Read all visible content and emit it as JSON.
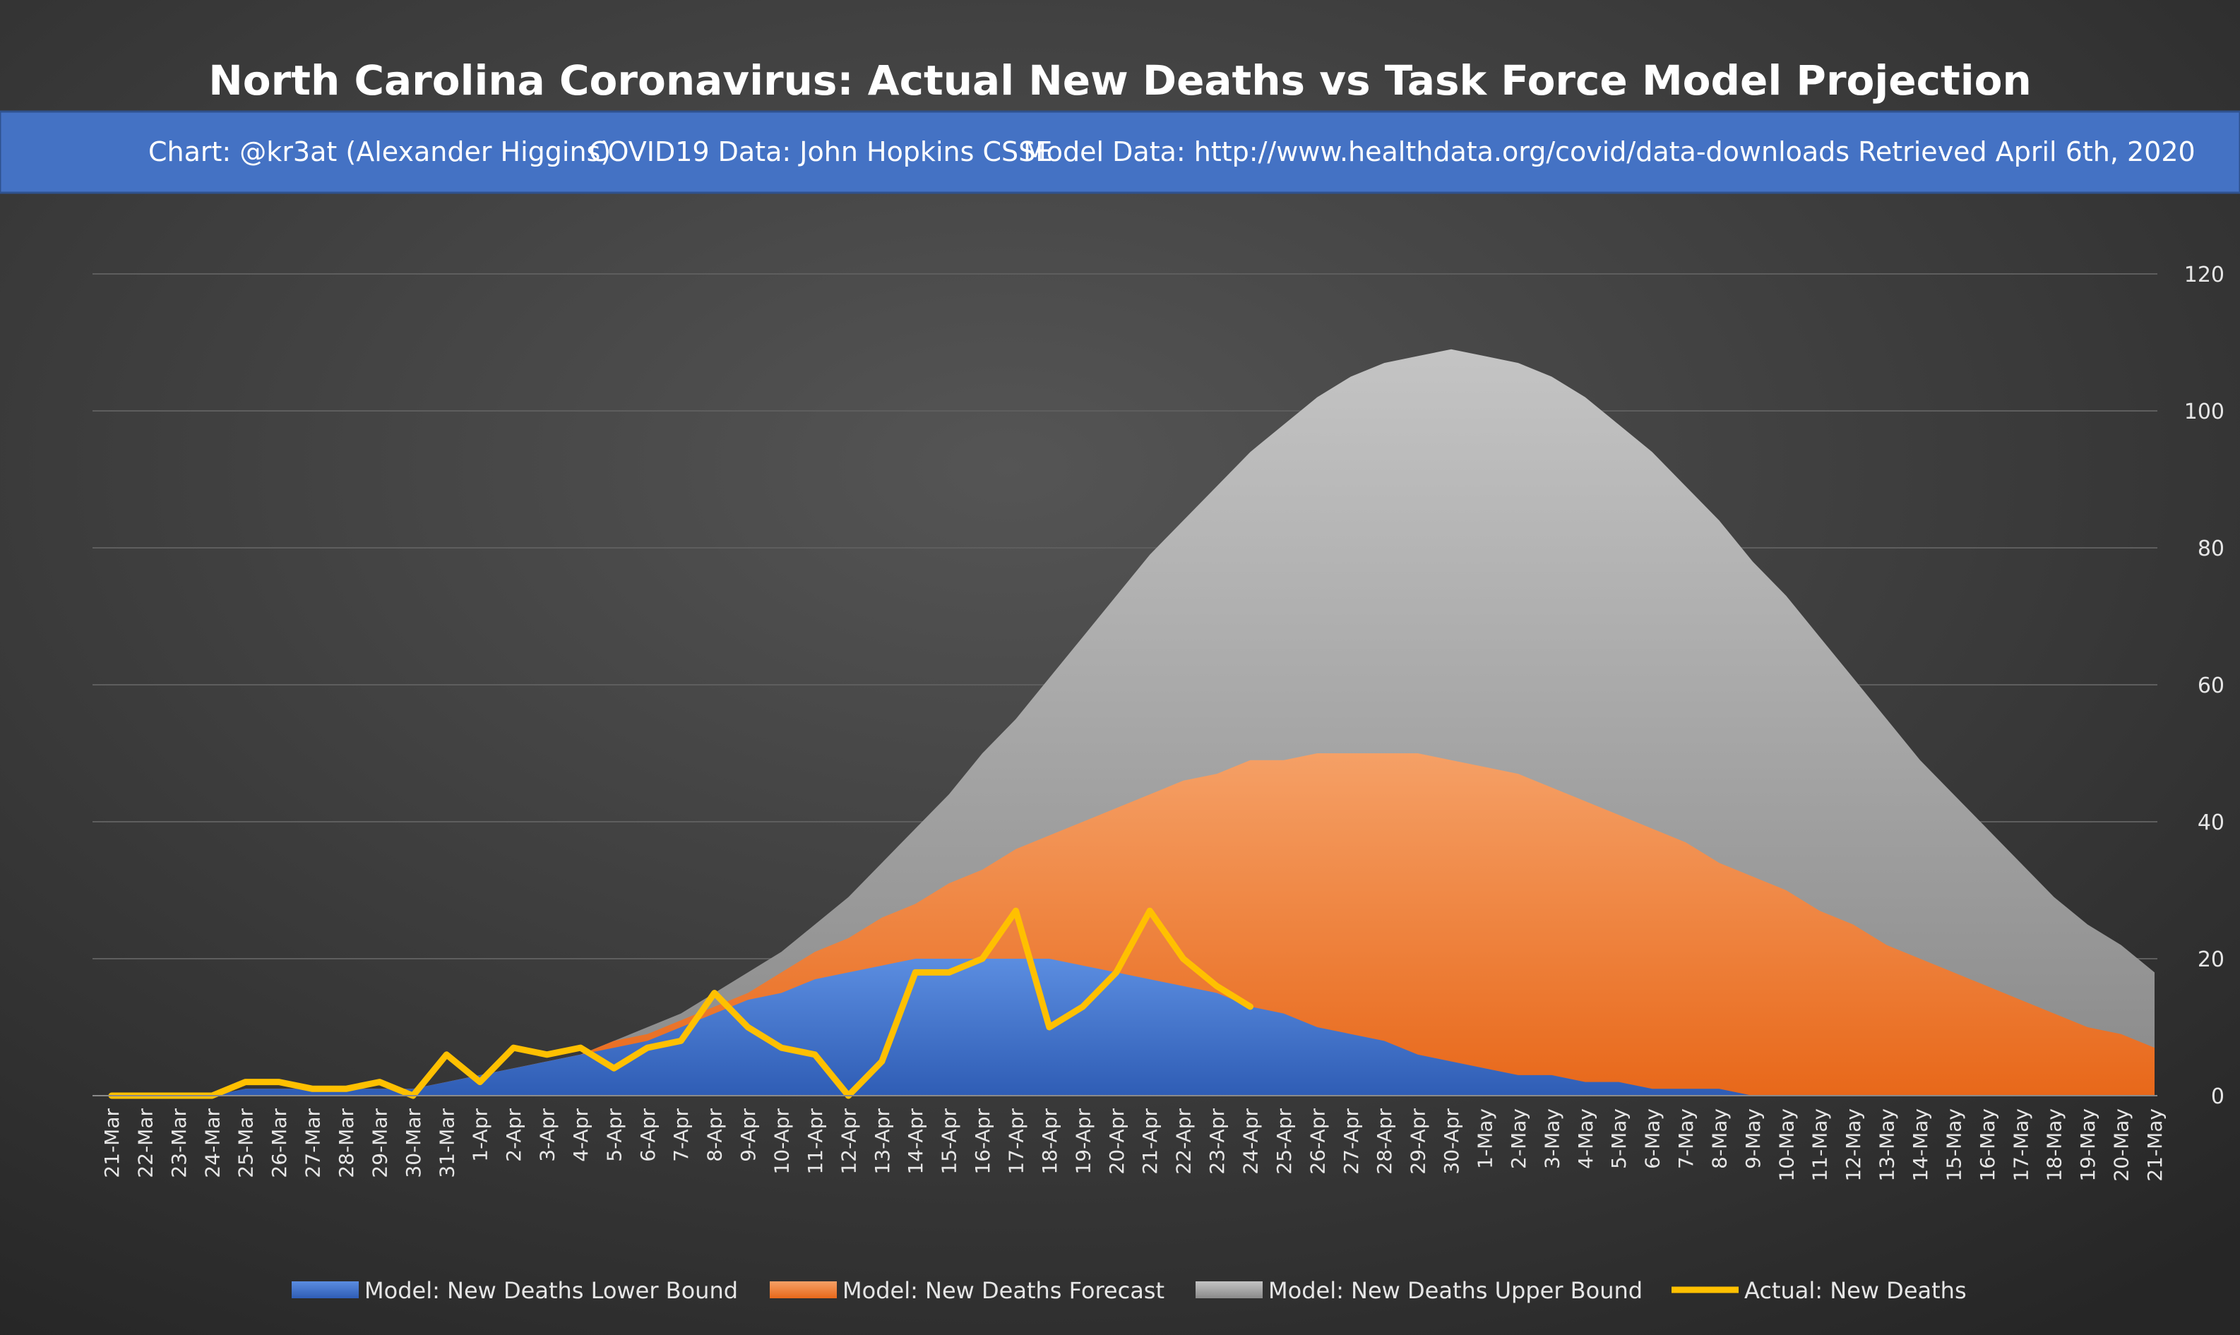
{
  "chart_data": {
    "type": "area",
    "title": "North Carolina Coronavirus: Actual New Deaths vs Task Force Model Projection",
    "subtitle": [
      "Chart: @kr3at (Alexander Higgins)",
      "COVID19 Data: John Hopkins CSSE",
      "Model Data: http://www.healthdata.org/covid/data-downloads Retrieved April 6th, 2020"
    ],
    "categories": [
      "21-Mar",
      "22-Mar",
      "23-Mar",
      "24-Mar",
      "25-Mar",
      "26-Mar",
      "27-Mar",
      "28-Mar",
      "29-Mar",
      "30-Mar",
      "31-Mar",
      "1-Apr",
      "2-Apr",
      "3-Apr",
      "4-Apr",
      "5-Apr",
      "6-Apr",
      "7-Apr",
      "8-Apr",
      "9-Apr",
      "10-Apr",
      "11-Apr",
      "12-Apr",
      "13-Apr",
      "14-Apr",
      "15-Apr",
      "16-Apr",
      "17-Apr",
      "18-Apr",
      "19-Apr",
      "20-Apr",
      "21-Apr",
      "22-Apr",
      "23-Apr",
      "24-Apr",
      "25-Apr",
      "26-Apr",
      "27-Apr",
      "28-Apr",
      "29-Apr",
      "30-Apr",
      "1-May",
      "2-May",
      "3-May",
      "4-May",
      "5-May",
      "6-May",
      "7-May",
      "8-May",
      "9-May",
      "10-May",
      "11-May",
      "12-May",
      "13-May",
      "14-May",
      "15-May",
      "16-May",
      "17-May",
      "18-May",
      "19-May",
      "20-May",
      "21-May"
    ],
    "series": [
      {
        "name": "Model: New Deaths Upper Bound",
        "color": "#a6a6a6",
        "kind": "area",
        "values": [
          0,
          0,
          0,
          0,
          1,
          1,
          1,
          1,
          1,
          1,
          2,
          3,
          4,
          5,
          6,
          8,
          10,
          12,
          15,
          18,
          21,
          25,
          29,
          34,
          39,
          44,
          50,
          55,
          61,
          67,
          73,
          79,
          84,
          89,
          94,
          98,
          102,
          105,
          107,
          108,
          109,
          108,
          107,
          105,
          102,
          98,
          94,
          89,
          84,
          78,
          73,
          67,
          61,
          55,
          49,
          44,
          39,
          34,
          29,
          25,
          22,
          18
        ]
      },
      {
        "name": "Model: New Deaths Forecast",
        "color": "#ed7d31",
        "kind": "area",
        "values": [
          0,
          0,
          0,
          0,
          1,
          1,
          1,
          1,
          1,
          1,
          2,
          3,
          4,
          5,
          6,
          8,
          9,
          11,
          13,
          15,
          18,
          21,
          23,
          26,
          28,
          31,
          33,
          36,
          38,
          40,
          42,
          44,
          46,
          47,
          49,
          49,
          50,
          50,
          50,
          50,
          49,
          48,
          47,
          45,
          43,
          41,
          39,
          37,
          34,
          32,
          30,
          27,
          25,
          22,
          20,
          18,
          16,
          14,
          12,
          10,
          9,
          7
        ]
      },
      {
        "name": "Model: New Deaths Lower Bound",
        "color": "#4472c4",
        "kind": "area",
        "values": [
          0,
          0,
          0,
          0,
          1,
          1,
          1,
          1,
          1,
          1,
          2,
          3,
          4,
          5,
          6,
          7,
          8,
          10,
          12,
          14,
          15,
          17,
          18,
          19,
          20,
          20,
          20,
          20,
          20,
          19,
          18,
          17,
          16,
          15,
          13,
          12,
          10,
          9,
          8,
          6,
          5,
          4,
          3,
          3,
          2,
          2,
          1,
          1,
          1,
          0,
          0,
          0,
          0,
          0,
          0,
          0,
          0,
          0,
          0,
          0,
          0,
          0
        ]
      },
      {
        "name": "Actual: New Deaths",
        "color": "#ffc000",
        "kind": "line",
        "values": [
          0,
          0,
          0,
          0,
          2,
          2,
          1,
          1,
          2,
          0,
          6,
          2,
          7,
          6,
          7,
          4,
          7,
          8,
          15,
          10,
          7,
          6,
          0,
          5,
          18,
          18,
          20,
          27,
          10,
          13,
          18,
          27,
          20,
          16,
          13,
          null,
          null,
          null,
          null,
          null,
          null,
          null,
          null,
          null,
          null,
          null,
          null,
          null,
          null,
          null,
          null,
          null,
          null,
          null,
          null,
          null,
          null,
          null,
          null,
          null,
          null,
          null
        ]
      }
    ],
    "legend_order": [
      2,
      1,
      0,
      3
    ],
    "ylim": [
      0,
      120
    ],
    "yticks": [
      0,
      20,
      40,
      60,
      80,
      100,
      120
    ],
    "grid": true,
    "y_axis_side": "right",
    "legend": "bottom"
  }
}
